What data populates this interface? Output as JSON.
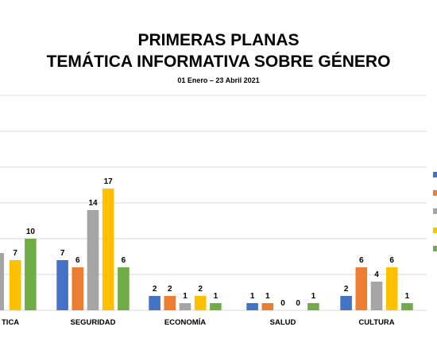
{
  "chart_data": {
    "type": "bar",
    "title": [
      "PRIMERAS PLANAS",
      "TEMÁTICA INFORMATIVA SOBRE GÉNERO"
    ],
    "subtitle": "01 Enero – 23 Abril 2021",
    "categories": [
      "TICA",
      "SEGURIDAD",
      "ECONOMÍA",
      "SALUD",
      "CULTURA"
    ],
    "series": [
      {
        "color": "#4472C4",
        "values": [
          null,
          7,
          2,
          1,
          2
        ]
      },
      {
        "color": "#ED7D31",
        "values": [
          null,
          6,
          2,
          1,
          6
        ]
      },
      {
        "color": "#A5A5A5",
        "values": [
          null,
          14,
          1,
          0,
          4
        ]
      },
      {
        "color": "#FFC000",
        "values": [
          7,
          17,
          2,
          0,
          6
        ]
      },
      {
        "color": "#70AD47",
        "values": [
          10,
          6,
          1,
          1,
          1
        ]
      }
    ],
    "partial_visible_values": {
      "category": "TICA",
      "series_index": 2,
      "value_label_cropped": true
    },
    "ylim": [
      0,
      30
    ],
    "grid": true,
    "legend": "right"
  }
}
